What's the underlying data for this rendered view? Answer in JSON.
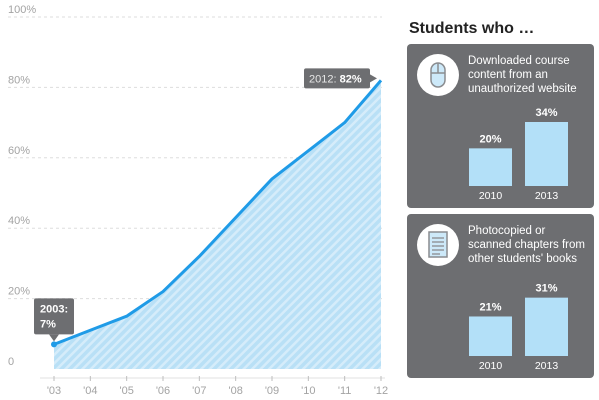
{
  "chart_data": [
    {
      "type": "area",
      "x": [
        "'03",
        "'04",
        "'05",
        "'06",
        "'07",
        "'08",
        "'09",
        "'10",
        "'11",
        "'12"
      ],
      "values": [
        7,
        11,
        15,
        22,
        32,
        43,
        54,
        62,
        70,
        82
      ],
      "ylim": [
        0,
        100
      ],
      "yticks": [
        0,
        20,
        40,
        60,
        80,
        100
      ],
      "ytick_labels": [
        "0",
        "20%",
        "40%",
        "60%",
        "80%",
        "100%"
      ],
      "grid": true,
      "colors": {
        "line": "#1f9be7",
        "fill": "#b9e0f6",
        "hatch": "#d9eefa"
      },
      "annotations": [
        {
          "x": "'03",
          "year": "2003:",
          "value": "7%"
        },
        {
          "x": "'12",
          "year": "2012:",
          "value": "82%"
        }
      ]
    },
    {
      "type": "bar",
      "title": "Downloaded course content from an unauthorized website",
      "categories": [
        "2010",
        "2013"
      ],
      "values": [
        20,
        34
      ],
      "value_labels": [
        "20%",
        "34%"
      ],
      "color": "#b3e0f8"
    },
    {
      "type": "bar",
      "title": "Photocopied or scanned chapters from other students' books",
      "categories": [
        "2010",
        "2013"
      ],
      "values": [
        21,
        31
      ],
      "value_labels": [
        "21%",
        "31%"
      ],
      "color": "#b3e0f8"
    }
  ],
  "sidebar": {
    "title": "Students who …",
    "panels": [
      {
        "icon": "mouse-icon",
        "text": "Downloaded course content from an unauthorized website"
      },
      {
        "icon": "document-icon",
        "text": "Photocopied or scanned chapters from other students' books"
      }
    ]
  },
  "colors": {
    "panel_bg": "#6d6e71",
    "callout_bg": "#6d6e71"
  }
}
